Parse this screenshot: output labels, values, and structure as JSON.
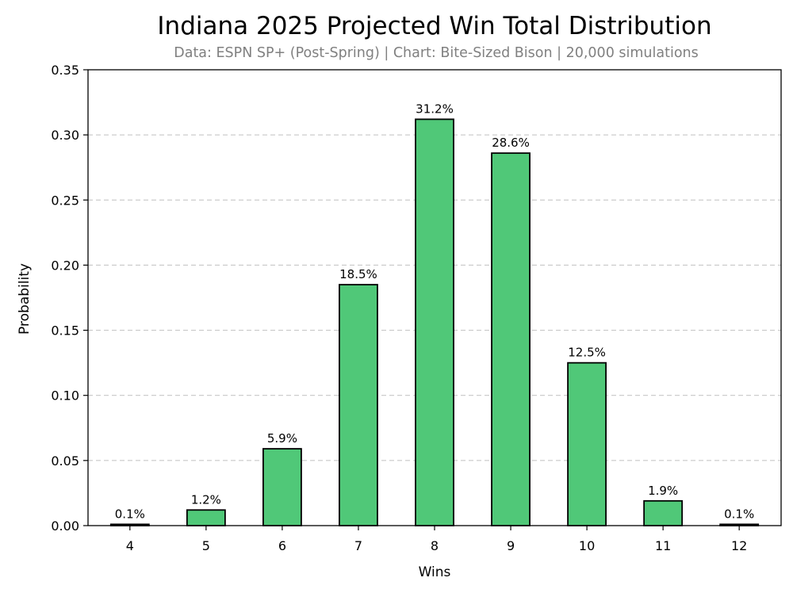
{
  "chart_data": {
    "type": "bar",
    "title": "Indiana 2025 Projected Win Total Distribution",
    "subtitle": "Data: ESPN SP+ (Post-Spring) | Chart: Bite-Sized Bison | 20,000 simulations",
    "xlabel": "Wins",
    "ylabel": "Probability",
    "categories": [
      "4",
      "5",
      "6",
      "7",
      "8",
      "9",
      "10",
      "11",
      "12"
    ],
    "values": [
      0.001,
      0.012,
      0.059,
      0.185,
      0.312,
      0.286,
      0.125,
      0.019,
      0.001
    ],
    "data_labels": [
      "0.1%",
      "1.2%",
      "5.9%",
      "18.5%",
      "31.2%",
      "28.6%",
      "12.5%",
      "1.9%",
      "0.1%"
    ],
    "ylim": [
      0,
      0.35
    ],
    "yticks": [
      0.0,
      0.05,
      0.1,
      0.15,
      0.2,
      0.25,
      0.3,
      0.35
    ],
    "ytick_labels": [
      "0.00",
      "0.05",
      "0.10",
      "0.15",
      "0.20",
      "0.25",
      "0.30",
      "0.35"
    ],
    "grid": "horizontal-dashed",
    "colors": {
      "bar_fill": "#50c878",
      "bar_edge": "#000000",
      "grid": "#c8c8c8",
      "subtitle": "#808080"
    }
  }
}
